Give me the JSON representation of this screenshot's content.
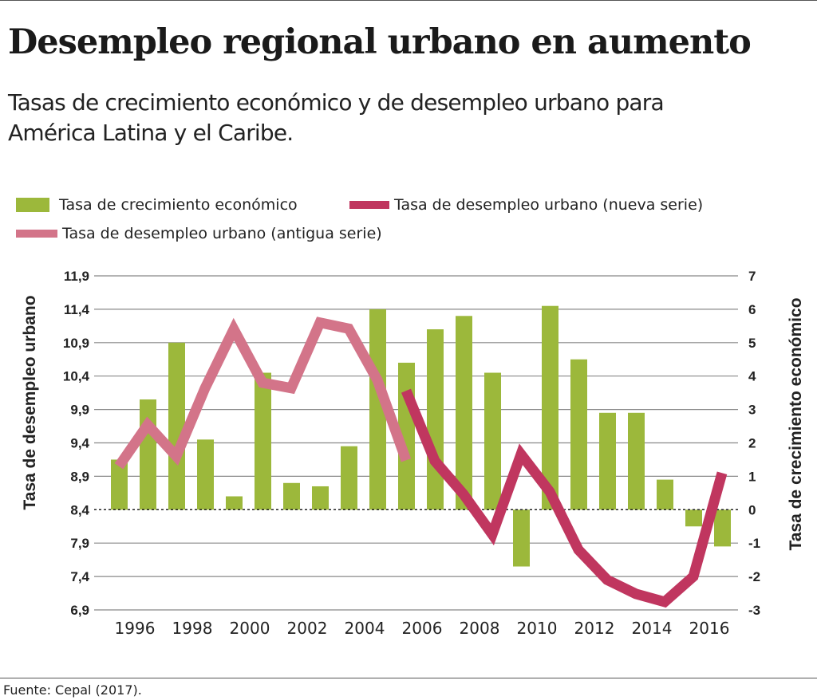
{
  "title": "Desempleo regional urbano en aumento",
  "subtitle": "Tasas de crecimiento económico y de desempleo urbano para América Latina y el Caribe.",
  "source": "Fuente: Cepal (2017).",
  "colors": {
    "growth": "#9cb83b",
    "new_series": "#c0365f",
    "old_series": "#d37489"
  },
  "chart_data": {
    "type": "bar+line",
    "title": "Desempleo regional urbano en aumento",
    "years": [
      1995,
      1996,
      1997,
      1998,
      1999,
      2000,
      2001,
      2002,
      2003,
      2004,
      2005,
      2006,
      2007,
      2008,
      2009,
      2010,
      2011,
      2012,
      2013,
      2014,
      2015,
      2016
    ],
    "x_tick_labels": [
      "1996",
      "1998",
      "2000",
      "2002",
      "2004",
      "2006",
      "2008",
      "2010",
      "2012",
      "2014",
      "2016"
    ],
    "ylabel_left": "Tasa de desempleo urbano",
    "ylabel_right": "Tasa de crecimiento económico",
    "ylim_left": [
      6.9,
      11.9
    ],
    "ylim_right": [
      -3,
      7
    ],
    "left_ticks": [
      "11,9",
      "11,4",
      "10,9",
      "10,4",
      "9,9",
      "9,4",
      "8,9",
      "8,4",
      "7,9",
      "7,4",
      "6,9"
    ],
    "right_ticks": [
      "7",
      "6",
      "5",
      "4",
      "3",
      "2",
      "1",
      "0",
      "-1",
      "-2",
      "-3"
    ],
    "legend": [
      "Tasa de crecimiento económico",
      "Tasa de desempleo urbano (nueva serie)",
      "Tasa de desempleo urbano (antigua serie)"
    ],
    "series": [
      {
        "name": "Tasa de crecimiento económico",
        "type": "bar",
        "axis": "right",
        "values": [
          1.5,
          3.3,
          5.0,
          2.1,
          0.4,
          4.1,
          0.8,
          0.7,
          1.9,
          6.0,
          4.4,
          5.4,
          5.8,
          4.1,
          -1.7,
          6.1,
          4.5,
          2.9,
          2.9,
          0.9,
          -0.5,
          -1.1
        ]
      },
      {
        "name": "Tasa de desempleo urbano (antigua serie)",
        "type": "line",
        "axis": "left",
        "values": [
          9.05,
          9.67,
          9.2,
          10.22,
          11.1,
          10.3,
          10.22,
          11.2,
          11.11,
          10.34,
          9.14,
          null,
          null,
          null,
          null,
          null,
          null,
          null,
          null,
          null,
          null,
          null
        ]
      },
      {
        "name": "Tasa de desempleo urbano (nueva serie)",
        "type": "line",
        "axis": "left",
        "values": [
          null,
          null,
          null,
          null,
          null,
          null,
          null,
          null,
          null,
          null,
          10.18,
          9.13,
          8.63,
          8.03,
          9.23,
          8.67,
          7.8,
          7.35,
          7.14,
          7.02,
          7.4,
          8.95
        ]
      }
    ],
    "grid": true,
    "legend_placement": "top"
  }
}
